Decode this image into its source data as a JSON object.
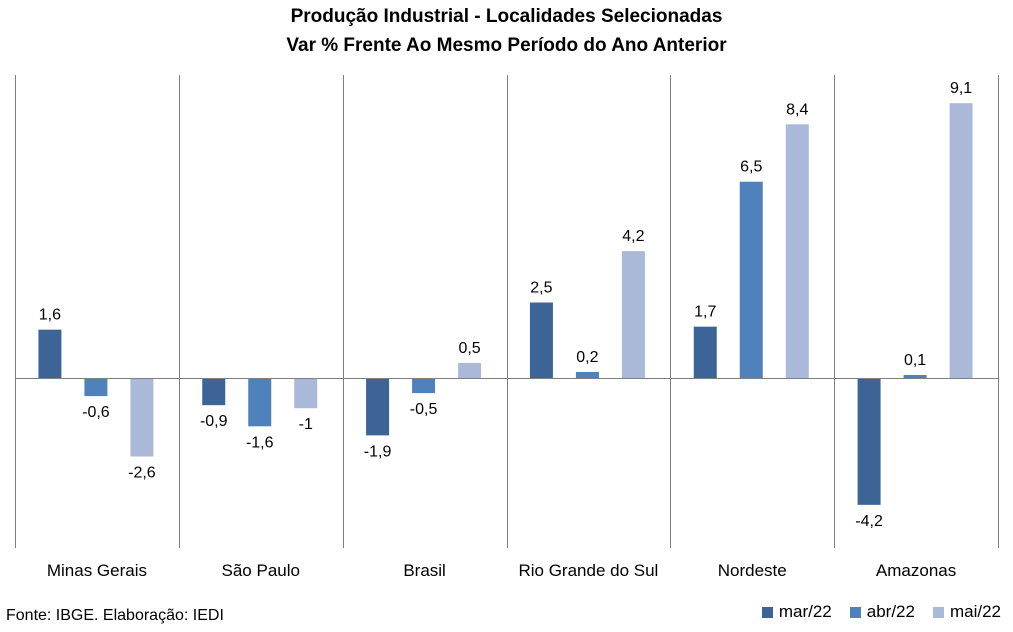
{
  "chart_data": {
    "type": "bar",
    "title": "Produção Industrial - Localidades Selecionadas",
    "subtitle": "Var % Frente Ao Mesmo Período do Ano Anterior",
    "categories": [
      "Minas Gerais",
      "São Paulo",
      "Brasil",
      "Rio Grande do Sul",
      "Nordeste",
      "Amazonas"
    ],
    "series": [
      {
        "name": "mar/22",
        "color": "#3C6496",
        "values": [
          1.6,
          -0.9,
          -1.9,
          2.5,
          1.7,
          -4.2
        ],
        "labels": [
          "1,6",
          "-0,9",
          "-1,9",
          "2,5",
          "1,7",
          "-4,2"
        ]
      },
      {
        "name": "abr/22",
        "color": "#4F81BD",
        "values": [
          -0.6,
          -1.6,
          -0.5,
          0.2,
          6.5,
          0.1
        ],
        "labels": [
          "-0,6",
          "-1,6",
          "-0,5",
          "0,2",
          "6,5",
          "0,1"
        ]
      },
      {
        "name": "mai/22",
        "color": "#AAB9D7",
        "values": [
          -2.6,
          -1.0,
          0.5,
          4.2,
          8.4,
          9.1
        ],
        "labels": [
          "-2,6",
          "-1",
          "0,5",
          "4,2",
          "8,4",
          "9,1"
        ]
      }
    ],
    "ylim": [
      -5.5,
      10.0
    ],
    "grid": false,
    "legend_position": "bottom-right"
  },
  "source": "Fonte: IBGE. Elaboração: IEDI"
}
